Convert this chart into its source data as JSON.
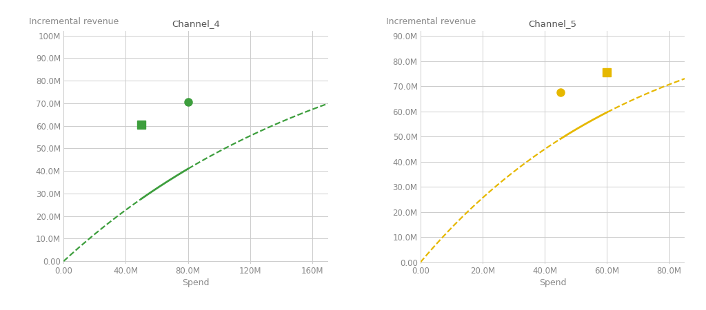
{
  "ch4": {
    "title": "Channel_4",
    "color": "#3d9e3d",
    "xlabel": "Spend",
    "ylabel": "Incremental revenue",
    "xlim": [
      0,
      170000000
    ],
    "ylim": [
      -1000000,
      102000000
    ],
    "xticks": [
      0,
      40000000,
      80000000,
      120000000,
      160000000
    ],
    "yticks": [
      0,
      10000000,
      20000000,
      30000000,
      40000000,
      50000000,
      60000000,
      70000000,
      80000000,
      90000000,
      100000000
    ],
    "xtick_labels": [
      "0.00",
      "40.0M",
      "80.0M",
      "120M",
      "160M"
    ],
    "ytick_labels": [
      "0.00",
      "10.0M",
      "20.0M",
      "30.0M",
      "40.0M",
      "50.0M",
      "60.0M",
      "70.0M",
      "80.0M",
      "90.0M",
      "100M"
    ],
    "amplitude": 115000000,
    "k": 5.5e-09,
    "square_marker_x": 50000000,
    "square_marker_y": 60500000,
    "circle_marker_x": 80000000,
    "circle_marker_y": 70500000
  },
  "ch5": {
    "title": "Channel_5",
    "color": "#e6b800",
    "xlabel": "Spend",
    "ylabel": "Incremental revenue",
    "xlim": [
      0,
      85000000
    ],
    "ylim": [
      -500000,
      92000000
    ],
    "xticks": [
      0,
      20000000,
      40000000,
      60000000,
      80000000
    ],
    "yticks": [
      0,
      10000000,
      20000000,
      30000000,
      40000000,
      50000000,
      60000000,
      70000000,
      80000000,
      90000000
    ],
    "xtick_labels": [
      "0.00",
      "20.0M",
      "40.0M",
      "60.0M",
      "80.0M"
    ],
    "ytick_labels": [
      "0.00",
      "10.0M",
      "20.0M",
      "30.0M",
      "40.0M",
      "50.0M",
      "60.0M",
      "70.0M",
      "80.0M",
      "90.0M"
    ],
    "amplitude": 105000000,
    "k": 1.4e-08,
    "circle_marker_x": 45000000,
    "circle_marker_y": 67500000,
    "square_marker_x": 60000000,
    "square_marker_y": 75500000
  },
  "bg_color": "#ffffff",
  "grid_color": "#cccccc",
  "title_fontsize": 9.5,
  "label_fontsize": 9,
  "tick_fontsize": 8.5
}
